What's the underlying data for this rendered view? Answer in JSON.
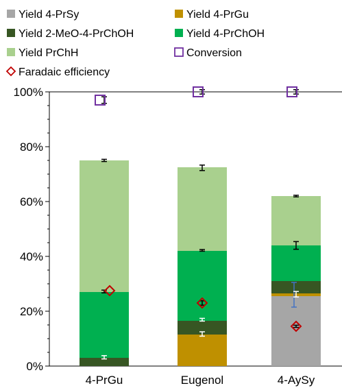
{
  "chart_data": {
    "type": "bar",
    "stacked": true,
    "categories": [
      "4-PrGu",
      "Eugenol",
      "4-AySy"
    ],
    "y_axis": {
      "min": 0,
      "max": 100,
      "step": 20,
      "unit": "%"
    },
    "y_tick_labels": [
      "0%",
      "20%",
      "40%",
      "60%",
      "80%",
      "100%"
    ],
    "legend_position": "top",
    "series": [
      {
        "name": "Yield 4-PrSy",
        "color": "#a6a6a6",
        "values": [
          0,
          0,
          25.5
        ]
      },
      {
        "name": "Yield 4-PrGu",
        "color": "#bf9000",
        "values": [
          0,
          11.5,
          1
        ]
      },
      {
        "name": "Yield 2-MeO-4-PrChOH",
        "color": "#375623",
        "values": [
          3,
          5,
          4.5
        ]
      },
      {
        "name": "Yield 4-PrChOH",
        "color": "#00b050",
        "values": [
          24,
          25.5,
          13
        ]
      },
      {
        "name": "Yield PrChH",
        "color": "#a9d08e",
        "values": [
          48,
          30.5,
          18
        ]
      }
    ],
    "markers": [
      {
        "name": "Conversion",
        "shape": "square",
        "color": "#7030a0",
        "values": [
          97,
          100,
          100
        ]
      },
      {
        "name": "Faradaic efficiency",
        "shape": "diamond",
        "color": "#c00000",
        "values": [
          27.5,
          23,
          14.5
        ]
      }
    ],
    "error_bars": [
      {
        "category": 0,
        "value": 3.2,
        "err": 0.6,
        "color": "#ffffff"
      },
      {
        "category": 0,
        "value": 27.2,
        "err": 0.5,
        "color": "#000000"
      },
      {
        "category": 0,
        "value": 75,
        "err": 0.4,
        "color": "#000000"
      },
      {
        "category": 0,
        "value": 97,
        "err": 1.2,
        "color": "#000000"
      },
      {
        "category": 1,
        "value": 11.7,
        "err": 0.8,
        "color": "#ffffff"
      },
      {
        "category": 1,
        "value": 16.9,
        "err": 0.5,
        "color": "#ffffff"
      },
      {
        "category": 1,
        "value": 23,
        "err": 0.8,
        "color": "#000000"
      },
      {
        "category": 1,
        "value": 42.2,
        "err": 0.3,
        "color": "#000000"
      },
      {
        "category": 1,
        "value": 72.3,
        "err": 1.0,
        "color": "#000000"
      },
      {
        "category": 1,
        "value": 100,
        "err": 0.8,
        "color": "#000000"
      },
      {
        "category": 2,
        "value": 26,
        "err": 4.5,
        "color": "#4472c4"
      },
      {
        "category": 2,
        "value": 26.2,
        "err": 1.0,
        "color": "#ffffff"
      },
      {
        "category": 2,
        "value": 14.5,
        "err": 0.4,
        "color": "#000000"
      },
      {
        "category": 2,
        "value": 44,
        "err": 1.4,
        "color": "#000000"
      },
      {
        "category": 2,
        "value": 62,
        "err": 0.3,
        "color": "#000000"
      },
      {
        "category": 2,
        "value": 100,
        "err": 0.8,
        "color": "#000000"
      }
    ],
    "grid": false
  }
}
